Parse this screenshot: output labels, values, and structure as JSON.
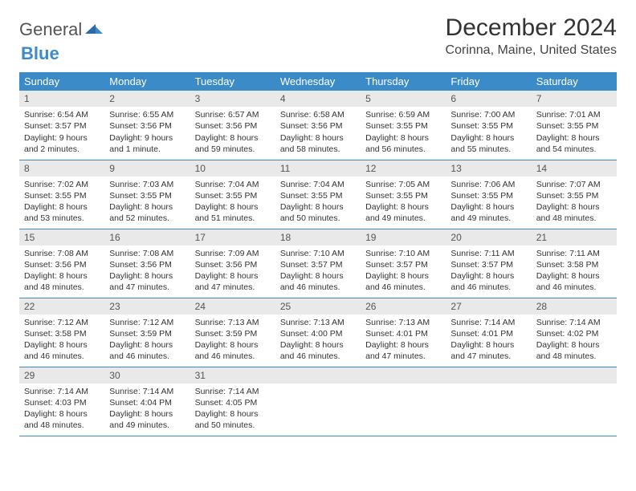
{
  "brand": {
    "part1": "General",
    "part2": "Blue"
  },
  "title": "December 2024",
  "location": "Corinna, Maine, United States",
  "colors": {
    "header_bg": "#3b8bc9",
    "header_text": "#ffffff",
    "daybar_bg": "#e9e9e9",
    "border": "#3b8bc9",
    "brand_blue": "#3b8bc9"
  },
  "weekdays": [
    "Sunday",
    "Monday",
    "Tuesday",
    "Wednesday",
    "Thursday",
    "Friday",
    "Saturday"
  ],
  "days": [
    {
      "n": "1",
      "sunrise": "Sunrise: 6:54 AM",
      "sunset": "Sunset: 3:57 PM",
      "daylight": "Daylight: 9 hours and 2 minutes."
    },
    {
      "n": "2",
      "sunrise": "Sunrise: 6:55 AM",
      "sunset": "Sunset: 3:56 PM",
      "daylight": "Daylight: 9 hours and 1 minute."
    },
    {
      "n": "3",
      "sunrise": "Sunrise: 6:57 AM",
      "sunset": "Sunset: 3:56 PM",
      "daylight": "Daylight: 8 hours and 59 minutes."
    },
    {
      "n": "4",
      "sunrise": "Sunrise: 6:58 AM",
      "sunset": "Sunset: 3:56 PM",
      "daylight": "Daylight: 8 hours and 58 minutes."
    },
    {
      "n": "5",
      "sunrise": "Sunrise: 6:59 AM",
      "sunset": "Sunset: 3:55 PM",
      "daylight": "Daylight: 8 hours and 56 minutes."
    },
    {
      "n": "6",
      "sunrise": "Sunrise: 7:00 AM",
      "sunset": "Sunset: 3:55 PM",
      "daylight": "Daylight: 8 hours and 55 minutes."
    },
    {
      "n": "7",
      "sunrise": "Sunrise: 7:01 AM",
      "sunset": "Sunset: 3:55 PM",
      "daylight": "Daylight: 8 hours and 54 minutes."
    },
    {
      "n": "8",
      "sunrise": "Sunrise: 7:02 AM",
      "sunset": "Sunset: 3:55 PM",
      "daylight": "Daylight: 8 hours and 53 minutes."
    },
    {
      "n": "9",
      "sunrise": "Sunrise: 7:03 AM",
      "sunset": "Sunset: 3:55 PM",
      "daylight": "Daylight: 8 hours and 52 minutes."
    },
    {
      "n": "10",
      "sunrise": "Sunrise: 7:04 AM",
      "sunset": "Sunset: 3:55 PM",
      "daylight": "Daylight: 8 hours and 51 minutes."
    },
    {
      "n": "11",
      "sunrise": "Sunrise: 7:04 AM",
      "sunset": "Sunset: 3:55 PM",
      "daylight": "Daylight: 8 hours and 50 minutes."
    },
    {
      "n": "12",
      "sunrise": "Sunrise: 7:05 AM",
      "sunset": "Sunset: 3:55 PM",
      "daylight": "Daylight: 8 hours and 49 minutes."
    },
    {
      "n": "13",
      "sunrise": "Sunrise: 7:06 AM",
      "sunset": "Sunset: 3:55 PM",
      "daylight": "Daylight: 8 hours and 49 minutes."
    },
    {
      "n": "14",
      "sunrise": "Sunrise: 7:07 AM",
      "sunset": "Sunset: 3:55 PM",
      "daylight": "Daylight: 8 hours and 48 minutes."
    },
    {
      "n": "15",
      "sunrise": "Sunrise: 7:08 AM",
      "sunset": "Sunset: 3:56 PM",
      "daylight": "Daylight: 8 hours and 48 minutes."
    },
    {
      "n": "16",
      "sunrise": "Sunrise: 7:08 AM",
      "sunset": "Sunset: 3:56 PM",
      "daylight": "Daylight: 8 hours and 47 minutes."
    },
    {
      "n": "17",
      "sunrise": "Sunrise: 7:09 AM",
      "sunset": "Sunset: 3:56 PM",
      "daylight": "Daylight: 8 hours and 47 minutes."
    },
    {
      "n": "18",
      "sunrise": "Sunrise: 7:10 AM",
      "sunset": "Sunset: 3:57 PM",
      "daylight": "Daylight: 8 hours and 46 minutes."
    },
    {
      "n": "19",
      "sunrise": "Sunrise: 7:10 AM",
      "sunset": "Sunset: 3:57 PM",
      "daylight": "Daylight: 8 hours and 46 minutes."
    },
    {
      "n": "20",
      "sunrise": "Sunrise: 7:11 AM",
      "sunset": "Sunset: 3:57 PM",
      "daylight": "Daylight: 8 hours and 46 minutes."
    },
    {
      "n": "21",
      "sunrise": "Sunrise: 7:11 AM",
      "sunset": "Sunset: 3:58 PM",
      "daylight": "Daylight: 8 hours and 46 minutes."
    },
    {
      "n": "22",
      "sunrise": "Sunrise: 7:12 AM",
      "sunset": "Sunset: 3:58 PM",
      "daylight": "Daylight: 8 hours and 46 minutes."
    },
    {
      "n": "23",
      "sunrise": "Sunrise: 7:12 AM",
      "sunset": "Sunset: 3:59 PM",
      "daylight": "Daylight: 8 hours and 46 minutes."
    },
    {
      "n": "24",
      "sunrise": "Sunrise: 7:13 AM",
      "sunset": "Sunset: 3:59 PM",
      "daylight": "Daylight: 8 hours and 46 minutes."
    },
    {
      "n": "25",
      "sunrise": "Sunrise: 7:13 AM",
      "sunset": "Sunset: 4:00 PM",
      "daylight": "Daylight: 8 hours and 46 minutes."
    },
    {
      "n": "26",
      "sunrise": "Sunrise: 7:13 AM",
      "sunset": "Sunset: 4:01 PM",
      "daylight": "Daylight: 8 hours and 47 minutes."
    },
    {
      "n": "27",
      "sunrise": "Sunrise: 7:14 AM",
      "sunset": "Sunset: 4:01 PM",
      "daylight": "Daylight: 8 hours and 47 minutes."
    },
    {
      "n": "28",
      "sunrise": "Sunrise: 7:14 AM",
      "sunset": "Sunset: 4:02 PM",
      "daylight": "Daylight: 8 hours and 48 minutes."
    },
    {
      "n": "29",
      "sunrise": "Sunrise: 7:14 AM",
      "sunset": "Sunset: 4:03 PM",
      "daylight": "Daylight: 8 hours and 48 minutes."
    },
    {
      "n": "30",
      "sunrise": "Sunrise: 7:14 AM",
      "sunset": "Sunset: 4:04 PM",
      "daylight": "Daylight: 8 hours and 49 minutes."
    },
    {
      "n": "31",
      "sunrise": "Sunrise: 7:14 AM",
      "sunset": "Sunset: 4:05 PM",
      "daylight": "Daylight: 8 hours and 50 minutes."
    }
  ],
  "layout": {
    "start_weekday": 0,
    "trailing_blanks": 4
  }
}
